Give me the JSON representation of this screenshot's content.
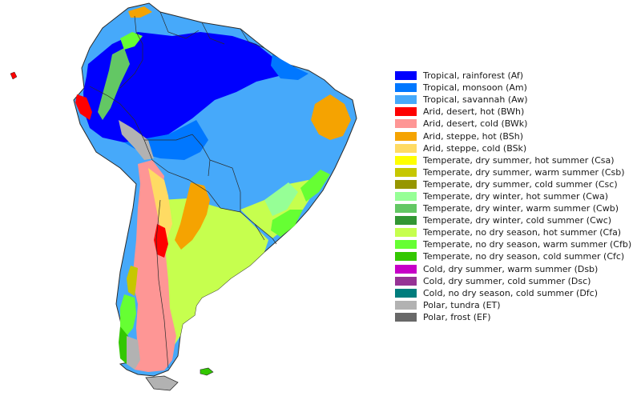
{
  "map": {
    "colors": {
      "ocean": "#ffffff",
      "border": "#2a2a2a",
      "Af": "#0000fe",
      "Am": "#0077ff",
      "Aw": "#46a9fa",
      "BWh": "#fe0000",
      "BWk": "#fe9695",
      "BSh": "#f5a301",
      "BSk": "#ffdb63",
      "Csa": "#ffff00",
      "Csb": "#c6c700",
      "Csc": "#969600",
      "Cwa": "#96ff96",
      "Cwb": "#63c764",
      "Cwc": "#329633",
      "Cfa": "#c6ff4e",
      "Cfb": "#66ff33",
      "Cfc": "#33c701",
      "Dsb": "#c600c7",
      "Dsc": "#963295",
      "Dfc": "#007d7d",
      "ET": "#b2b2b2",
      "EF": "#686868"
    }
  },
  "legend": {
    "items": [
      {
        "label": "Tropical, rainforest (Af)",
        "color": "#0000fe"
      },
      {
        "label": "Tropical, monsoon (Am)",
        "color": "#0077ff"
      },
      {
        "label": "Tropical, savannah (Aw)",
        "color": "#46a9fa"
      },
      {
        "label": "Arid, desert, hot (BWh)",
        "color": "#fe0000"
      },
      {
        "label": "Arid, desert, cold (BWk)",
        "color": "#fe9695"
      },
      {
        "label": "Arid, steppe, hot (BSh)",
        "color": "#f5a301"
      },
      {
        "label": "Arid, steppe, cold (BSk)",
        "color": "#ffdb63"
      },
      {
        "label": "Temperate, dry summer, hot summer (Csa)",
        "color": "#ffff00"
      },
      {
        "label": "Temperate, dry summer, warm summer (Csb)",
        "color": "#c6c700"
      },
      {
        "label": "Temperate, dry summer, cold summer (Csc)",
        "color": "#969600"
      },
      {
        "label": "Temperate, dry winter, hot summer (Cwa)",
        "color": "#96ff96"
      },
      {
        "label": "Temperate, dry winter, warm summer (Cwb)",
        "color": "#63c764"
      },
      {
        "label": "Temperate, dry winter, cold summer (Cwc)",
        "color": "#329633"
      },
      {
        "label": "Temperate, no dry season, hot summer (Cfa)",
        "color": "#c6ff4e"
      },
      {
        "label": "Temperate, no dry season, warm summer (Cfb)",
        "color": "#66ff33"
      },
      {
        "label": "Temperate, no dry season, cold summer (Cfc)",
        "color": "#33c701"
      },
      {
        "label": "Cold, dry summer, warm summer (Dsb)",
        "color": "#c600c7"
      },
      {
        "label": "Cold, dry summer, cold summer (Dsc)",
        "color": "#963295"
      },
      {
        "label": "Cold, no dry season, cold summer (Dfc)",
        "color": "#007d7d"
      },
      {
        "label": "Polar, tundra (ET)",
        "color": "#b2b2b2"
      },
      {
        "label": "Polar, frost (EF)",
        "color": "#686868"
      }
    ]
  }
}
